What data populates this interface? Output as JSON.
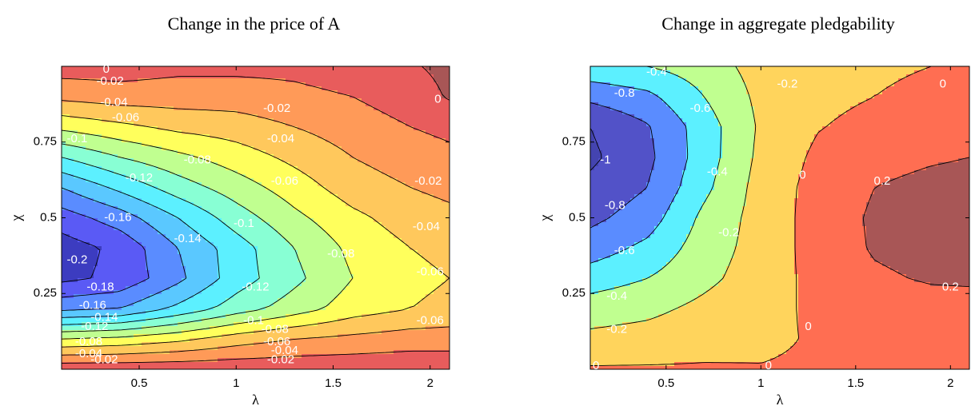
{
  "chart_data": [
    {
      "type": "contour",
      "title": "Change in the price of A",
      "xlabel": "λ",
      "ylabel": "χ",
      "xlim": [
        0.1,
        2.1
      ],
      "ylim": [
        0,
        1
      ],
      "xticks": [
        0.5,
        1,
        1.5,
        2
      ],
      "yticks": [
        0.25,
        0.5,
        0.75
      ],
      "x_grid": [
        0.1,
        0.4,
        0.7,
        1.0,
        1.3,
        1.6,
        1.9,
        2.1
      ],
      "y_grid": [
        0,
        0.1,
        0.2,
        0.3,
        0.4,
        0.5,
        0.6,
        0.7,
        0.8,
        0.9,
        1.0
      ],
      "z": [
        [
          -0.005,
          -0.005,
          -0.005,
          -0.005,
          -0.005,
          -0.005,
          -0.005,
          -0.005
        ],
        [
          -0.08,
          -0.075,
          -0.065,
          -0.05,
          -0.04,
          -0.035,
          -0.03,
          -0.03
        ],
        [
          -0.165,
          -0.16,
          -0.135,
          -0.11,
          -0.09,
          -0.07,
          -0.06,
          -0.055
        ],
        [
          -0.205,
          -0.195,
          -0.165,
          -0.13,
          -0.105,
          -0.08,
          -0.065,
          -0.06
        ],
        [
          -0.21,
          -0.195,
          -0.16,
          -0.13,
          -0.1,
          -0.075,
          -0.06,
          -0.055
        ],
        [
          -0.19,
          -0.17,
          -0.14,
          -0.11,
          -0.085,
          -0.065,
          -0.05,
          -0.045
        ],
        [
          -0.16,
          -0.135,
          -0.11,
          -0.09,
          -0.07,
          -0.05,
          -0.04,
          -0.035
        ],
        [
          -0.12,
          -0.1,
          -0.085,
          -0.07,
          -0.055,
          -0.04,
          -0.03,
          -0.025
        ],
        [
          -0.075,
          -0.065,
          -0.055,
          -0.05,
          -0.04,
          -0.03,
          -0.02,
          -0.015
        ],
        [
          -0.035,
          -0.03,
          -0.03,
          -0.03,
          -0.025,
          -0.02,
          -0.01,
          0.002
        ],
        [
          -0.01,
          -0.01,
          -0.015,
          -0.015,
          -0.015,
          -0.01,
          -0.002,
          0.005
        ]
      ],
      "levels": [
        -0.2,
        -0.18,
        -0.16,
        -0.14,
        -0.12,
        -0.1,
        -0.08,
        -0.06,
        -0.04,
        -0.02,
        0
      ],
      "colors": [
        "#3c3cc0",
        "#5a5af5",
        "#5a8cff",
        "#5ac8ff",
        "#5cf0ff",
        "#88ffd4",
        "#c0ff90",
        "#ffff5c",
        "#ffc85c",
        "#ff9a58",
        "#e85c5c",
        "#a85656"
      ],
      "contour_labels": [
        {
          "x": 0.33,
          "y": 0.99,
          "value": 0
        },
        {
          "x": 0.35,
          "y": 0.95,
          "value": -0.02
        },
        {
          "x": 0.37,
          "y": 0.88,
          "value": -0.04
        },
        {
          "x": 0.43,
          "y": 0.83,
          "value": -0.06
        },
        {
          "x": 0.18,
          "y": 0.76,
          "value": -0.1
        },
        {
          "x": 0.5,
          "y": 0.63,
          "value": -0.12
        },
        {
          "x": 0.39,
          "y": 0.5,
          "value": -0.16
        },
        {
          "x": 0.18,
          "y": 0.36,
          "value": -0.2
        },
        {
          "x": 0.3,
          "y": 0.27,
          "value": -0.18
        },
        {
          "x": 0.26,
          "y": 0.21,
          "value": -0.16
        },
        {
          "x": 0.32,
          "y": 0.17,
          "value": -0.14
        },
        {
          "x": 0.27,
          "y": 0.14,
          "value": -0.12
        },
        {
          "x": 0.24,
          "y": 0.09,
          "value": -0.08
        },
        {
          "x": 0.24,
          "y": 0.05,
          "value": -0.04
        },
        {
          "x": 0.32,
          "y": 0.03,
          "value": -0.02
        },
        {
          "x": 0.8,
          "y": 0.69,
          "value": -0.08
        },
        {
          "x": 1.21,
          "y": 0.86,
          "value": -0.02
        },
        {
          "x": 1.23,
          "y": 0.76,
          "value": -0.04
        },
        {
          "x": 1.25,
          "y": 0.62,
          "value": -0.06
        },
        {
          "x": 1.04,
          "y": 0.48,
          "value": -0.1
        },
        {
          "x": 0.75,
          "y": 0.43,
          "value": -0.14
        },
        {
          "x": 1.1,
          "y": 0.27,
          "value": -0.12
        },
        {
          "x": 1.54,
          "y": 0.38,
          "value": -0.08
        },
        {
          "x": 1.99,
          "y": 0.62,
          "value": -0.02
        },
        {
          "x": 1.98,
          "y": 0.47,
          "value": -0.04
        },
        {
          "x": 2.0,
          "y": 0.32,
          "value": -0.06
        },
        {
          "x": 2.0,
          "y": 0.16,
          "value": -0.06
        },
        {
          "x": 2.04,
          "y": 0.89,
          "value": 0
        },
        {
          "x": 1.09,
          "y": 0.16,
          "value": -0.1
        },
        {
          "x": 1.2,
          "y": 0.13,
          "value": -0.08
        },
        {
          "x": 1.21,
          "y": 0.09,
          "value": -0.06
        },
        {
          "x": 1.25,
          "y": 0.06,
          "value": -0.04
        },
        {
          "x": 1.23,
          "y": 0.03,
          "value": -0.02
        }
      ]
    },
    {
      "type": "contour",
      "title": "Change in aggregate pledgability",
      "xlabel": "λ",
      "ylabel": "χ",
      "xlim": [
        0.1,
        2.1
      ],
      "ylim": [
        0,
        1
      ],
      "xticks": [
        0.5,
        1,
        1.5,
        2
      ],
      "yticks": [
        0.25,
        0.5,
        0.75
      ],
      "x_grid": [
        0.1,
        0.4,
        0.7,
        1.0,
        1.3,
        1.6,
        1.9,
        2.1
      ],
      "y_grid": [
        0,
        0.1,
        0.2,
        0.3,
        0.4,
        0.5,
        0.6,
        0.7,
        0.8,
        0.9,
        1.0
      ],
      "z": [
        [
          0.02,
          0.02,
          0.02,
          0.01,
          0.03,
          0.05,
          0.05,
          0.05
        ],
        [
          -0.15,
          -0.12,
          -0.07,
          -0.04,
          0.02,
          0.05,
          0.06,
          0.06
        ],
        [
          -0.3,
          -0.25,
          -0.15,
          -0.05,
          0.03,
          0.1,
          0.12,
          0.12
        ],
        [
          -0.5,
          -0.4,
          -0.25,
          -0.1,
          0.06,
          0.17,
          0.22,
          0.23
        ],
        [
          -0.7,
          -0.55,
          -0.3,
          -0.12,
          0.08,
          0.22,
          0.27,
          0.28
        ],
        [
          -0.85,
          -0.7,
          -0.35,
          -0.12,
          0.08,
          0.23,
          0.28,
          0.29
        ],
        [
          -0.95,
          -0.8,
          -0.45,
          -0.12,
          0.07,
          0.2,
          0.25,
          0.26
        ],
        [
          -1.04,
          -0.85,
          -0.5,
          -0.15,
          0.04,
          0.14,
          0.18,
          0.2
        ],
        [
          -1.0,
          -0.82,
          -0.5,
          -0.17,
          -0.01,
          0.06,
          0.1,
          0.12
        ],
        [
          -0.75,
          -0.65,
          -0.4,
          -0.15,
          -0.05,
          0.0,
          0.03,
          0.05
        ],
        [
          -0.45,
          -0.4,
          -0.3,
          -0.12,
          -0.05,
          -0.02,
          0.0,
          0.02
        ]
      ],
      "levels": [
        -1,
        -0.8,
        -0.6,
        -0.4,
        -0.2,
        0,
        0.2
      ],
      "colors": [
        "#4444b0",
        "#5252c8",
        "#5a8cff",
        "#5cf0ff",
        "#c0ff90",
        "#ffd45c",
        "#ff6e52",
        "#a85656"
      ],
      "contour_labels": [
        {
          "x": 0.45,
          "y": 0.98,
          "value": -0.4
        },
        {
          "x": 0.28,
          "y": 0.91,
          "value": -0.8
        },
        {
          "x": 0.68,
          "y": 0.86,
          "value": -0.6
        },
        {
          "x": 1.14,
          "y": 0.94,
          "value": -0.2
        },
        {
          "x": 1.96,
          "y": 0.94,
          "value": 0
        },
        {
          "x": 0.18,
          "y": 0.69,
          "value": -1
        },
        {
          "x": 0.77,
          "y": 0.65,
          "value": -0.4
        },
        {
          "x": 1.22,
          "y": 0.64,
          "value": 0
        },
        {
          "x": 1.64,
          "y": 0.62,
          "value": 0.2
        },
        {
          "x": 0.23,
          "y": 0.54,
          "value": -0.8
        },
        {
          "x": 0.83,
          "y": 0.45,
          "value": -0.2
        },
        {
          "x": 0.28,
          "y": 0.39,
          "value": -0.6
        },
        {
          "x": 0.24,
          "y": 0.24,
          "value": -0.4
        },
        {
          "x": 2.0,
          "y": 0.27,
          "value": 0.2
        },
        {
          "x": 0.24,
          "y": 0.13,
          "value": -0.2
        },
        {
          "x": 1.25,
          "y": 0.14,
          "value": 0
        },
        {
          "x": 0.13,
          "y": 0.01,
          "value": 0
        },
        {
          "x": 1.04,
          "y": 0.01,
          "value": 0
        }
      ]
    }
  ]
}
